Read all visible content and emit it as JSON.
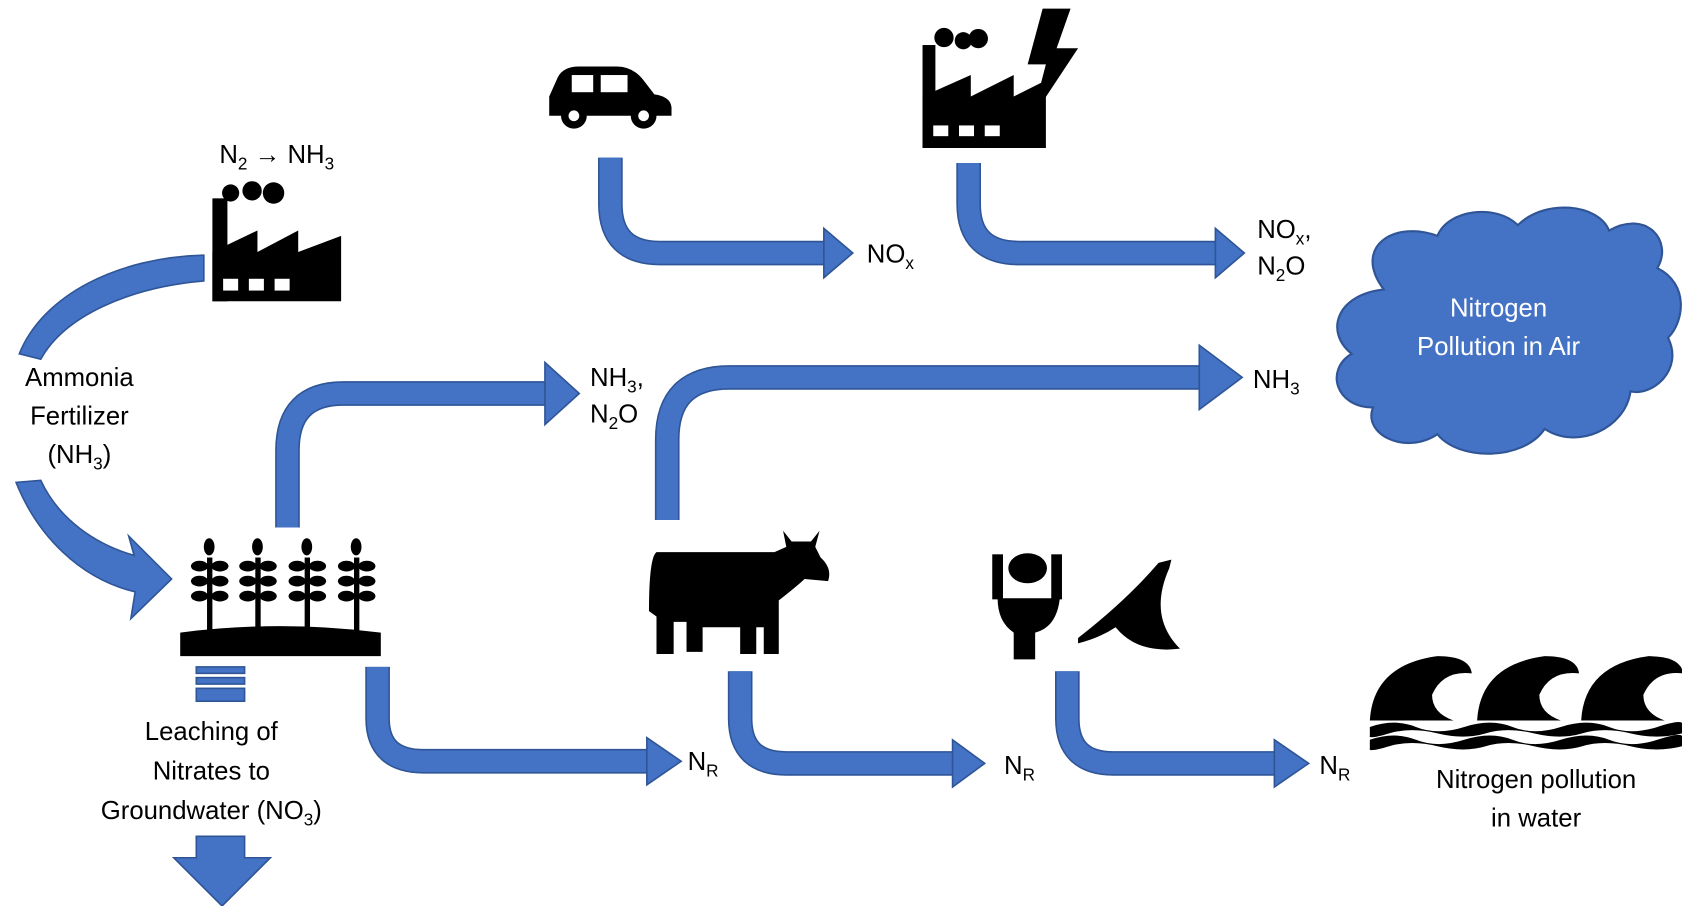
{
  "labels": {
    "synthesis": [
      [
        {
          "t": "N"
        },
        {
          "s": "2"
        },
        {
          "t": " → NH"
        },
        {
          "s": "3"
        }
      ]
    ],
    "fertilizer": [
      [
        {
          "t": "Ammonia"
        }
      ],
      [
        {
          "t": "Fertilizer"
        }
      ],
      [
        {
          "t": "(NH"
        },
        {
          "s": "3"
        },
        {
          "t": ")"
        }
      ]
    ],
    "leaching": [
      [
        {
          "t": "Leaching of"
        }
      ],
      [
        {
          "t": "Nitrates to"
        }
      ],
      [
        {
          "t": "Groundwater (NO"
        },
        {
          "s": "3"
        },
        {
          "t": ")"
        }
      ]
    ],
    "car_output": [
      [
        {
          "t": "NO"
        },
        {
          "s": "x"
        }
      ]
    ],
    "power_output": [
      [
        {
          "t": "NO"
        },
        {
          "s": "x"
        },
        {
          "t": ","
        }
      ],
      [
        {
          "t": "N"
        },
        {
          "s": "2"
        },
        {
          "t": "O"
        }
      ]
    ],
    "crop_air_output": [
      [
        {
          "t": "NH"
        },
        {
          "s": "3"
        },
        {
          "t": ","
        }
      ],
      [
        {
          "t": "N"
        },
        {
          "s": "2"
        },
        {
          "t": "O"
        }
      ]
    ],
    "cow_air_output": [
      [
        {
          "t": "NH"
        },
        {
          "s": "3"
        }
      ]
    ],
    "crop_water_output": [
      [
        {
          "t": "N"
        },
        {
          "s": "R"
        }
      ]
    ],
    "cow_water_output": [
      [
        {
          "t": "N"
        },
        {
          "s": "R"
        }
      ]
    ],
    "waste_water_output": [
      [
        {
          "t": "N"
        },
        {
          "s": "R"
        }
      ]
    ],
    "air_sink": [
      [
        {
          "t": "Nitrogen"
        }
      ],
      [
        {
          "t": "Pollution in Air"
        }
      ]
    ],
    "water_sink": [
      [
        {
          "t": "Nitrogen pollution"
        }
      ],
      [
        {
          "t": "in water"
        }
      ]
    ]
  }
}
